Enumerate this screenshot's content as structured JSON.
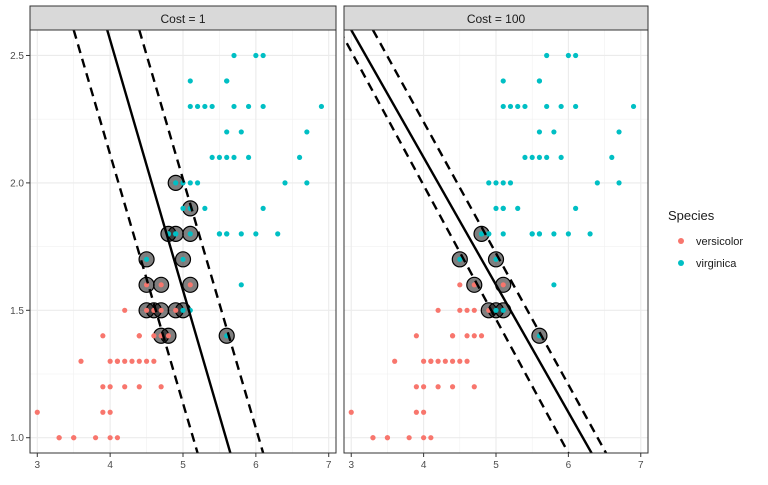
{
  "chart_data": {
    "type": "scatter",
    "colors": {
      "versicolor": "#F8766D",
      "virginica": "#00BFC4",
      "panel_strip": "#D9D9D9",
      "support_vector": "#000000"
    },
    "legend": {
      "title": "Species",
      "placement": "right",
      "entries": [
        "versicolor",
        "virginica"
      ]
    },
    "grid": true,
    "points": {
      "versicolor": [
        [
          3.0,
          1.1
        ],
        [
          3.3,
          1.0
        ],
        [
          3.5,
          1.0
        ],
        [
          3.8,
          1.0
        ],
        [
          4.0,
          1.0
        ],
        [
          4.1,
          1.0
        ],
        [
          3.6,
          1.3
        ],
        [
          3.9,
          1.2
        ],
        [
          3.9,
          1.1
        ],
        [
          4.0,
          1.1
        ],
        [
          4.1,
          1.3
        ],
        [
          4.2,
          1.3
        ],
        [
          4.0,
          1.2
        ],
        [
          4.2,
          1.2
        ],
        [
          4.2,
          1.5
        ],
        [
          4.3,
          1.3
        ],
        [
          4.4,
          1.3
        ],
        [
          4.4,
          1.2
        ],
        [
          4.4,
          1.4
        ],
        [
          4.5,
          1.3
        ],
        [
          4.5,
          1.5
        ],
        [
          4.6,
          1.3
        ],
        [
          4.6,
          1.4
        ],
        [
          4.7,
          1.4
        ],
        [
          4.7,
          1.2
        ],
        [
          4.8,
          1.4
        ],
        [
          4.9,
          1.5
        ],
        [
          5.0,
          1.7
        ],
        [
          5.1,
          1.6
        ],
        [
          4.7,
          1.5
        ],
        [
          4.5,
          1.6
        ],
        [
          4.8,
          1.8
        ],
        [
          3.3,
          1.0
        ],
        [
          3.9,
          1.4
        ],
        [
          3.5,
          1.0
        ],
        [
          4.0,
          1.3
        ],
        [
          4.1,
          1.3
        ],
        [
          4.4,
          1.4
        ],
        [
          4.6,
          1.5
        ],
        [
          4.7,
          1.6
        ]
      ],
      "virginica": [
        [
          6.0,
          2.5
        ],
        [
          5.1,
          1.9
        ],
        [
          5.9,
          2.1
        ],
        [
          5.6,
          1.8
        ],
        [
          5.8,
          2.2
        ],
        [
          6.6,
          2.1
        ],
        [
          4.5,
          1.7
        ],
        [
          6.3,
          1.8
        ],
        [
          5.8,
          1.8
        ],
        [
          6.1,
          2.5
        ],
        [
          5.1,
          2.0
        ],
        [
          5.3,
          1.9
        ],
        [
          5.5,
          2.1
        ],
        [
          5.0,
          2.0
        ],
        [
          5.1,
          2.4
        ],
        [
          5.3,
          2.3
        ],
        [
          5.5,
          1.8
        ],
        [
          6.7,
          2.2
        ],
        [
          6.9,
          2.3
        ],
        [
          5.0,
          1.5
        ],
        [
          5.7,
          2.3
        ],
        [
          4.9,
          2.0
        ],
        [
          6.7,
          2.0
        ],
        [
          4.9,
          1.8
        ],
        [
          5.7,
          2.1
        ],
        [
          6.0,
          1.8
        ],
        [
          4.8,
          1.8
        ],
        [
          4.9,
          1.8
        ],
        [
          5.6,
          2.1
        ],
        [
          5.8,
          1.6
        ],
        [
          6.1,
          1.9
        ],
        [
          6.4,
          2.0
        ],
        [
          5.6,
          2.2
        ],
        [
          5.1,
          1.5
        ],
        [
          5.6,
          1.4
        ],
        [
          6.1,
          2.3
        ],
        [
          5.6,
          2.4
        ],
        [
          5.5,
          1.8
        ],
        [
          4.8,
          1.8
        ],
        [
          5.4,
          2.1
        ],
        [
          5.6,
          2.4
        ],
        [
          5.1,
          2.3
        ],
        [
          5.9,
          2.3
        ],
        [
          5.7,
          2.5
        ],
        [
          5.2,
          2.3
        ],
        [
          5.0,
          1.9
        ],
        [
          5.2,
          2.0
        ],
        [
          5.4,
          2.3
        ],
        [
          5.1,
          1.8
        ],
        [
          5.6,
          1.8
        ],
        [
          5.1,
          1.9
        ],
        [
          5.0,
          1.7
        ]
      ]
    },
    "panels": [
      {
        "strip_label": "Cost = 1",
        "xlim": [
          2.9,
          7.1
        ],
        "ylim": [
          0.94,
          2.6
        ],
        "x_ticks": [
          3,
          4,
          5,
          6,
          7
        ],
        "y_ticks": [
          1.0,
          1.5,
          2.0,
          2.5
        ],
        "y_tick_labels": [
          "1.0",
          "1.5",
          "2.0",
          "2.5"
        ],
        "decision_line": {
          "x_at_y_top": 3.96,
          "x_at_y_bottom": 5.65
        },
        "margin_lower": {
          "x_at_y_top": 3.5,
          "x_at_y_bottom": 5.2
        },
        "margin_upper": {
          "x_at_y_top": 4.4,
          "x_at_y_bottom": 6.1
        },
        "support_vectors": [
          [
            4.9,
            2.0
          ],
          [
            5.1,
            1.9
          ],
          [
            4.8,
            1.8
          ],
          [
            4.9,
            1.8
          ],
          [
            5.1,
            1.8
          ],
          [
            4.5,
            1.7
          ],
          [
            5.0,
            1.7
          ],
          [
            4.5,
            1.6
          ],
          [
            4.7,
            1.6
          ],
          [
            5.1,
            1.6
          ],
          [
            4.5,
            1.5
          ],
          [
            4.6,
            1.5
          ],
          [
            4.7,
            1.5
          ],
          [
            4.9,
            1.5
          ],
          [
            5.0,
            1.5
          ],
          [
            4.7,
            1.4
          ],
          [
            4.8,
            1.4
          ],
          [
            5.6,
            1.4
          ]
        ]
      },
      {
        "strip_label": "Cost = 100",
        "xlim": [
          2.9,
          7.1
        ],
        "ylim": [
          0.94,
          2.6
        ],
        "x_ticks": [
          3,
          4,
          5,
          6,
          7
        ],
        "y_ticks": [
          1.0,
          1.5,
          2.0,
          2.5
        ],
        "y_tick_labels": [
          "1.0",
          "1.5",
          "2.0",
          "2.5"
        ],
        "decision_line": {
          "x_at_y_top": 3.0,
          "x_at_y_bottom": 6.32
        },
        "margin_lower": {
          "x_at_y_top": 2.84,
          "x_at_y_bottom": 6.0
        },
        "margin_upper": {
          "x_at_y_top": 3.3,
          "x_at_y_bottom": 6.52
        },
        "support_vectors": [
          [
            4.8,
            1.8
          ],
          [
            4.5,
            1.7
          ],
          [
            5.0,
            1.7
          ],
          [
            4.7,
            1.6
          ],
          [
            5.1,
            1.6
          ],
          [
            4.9,
            1.5
          ],
          [
            5.0,
            1.5
          ],
          [
            5.1,
            1.5
          ],
          [
            5.6,
            1.4
          ]
        ]
      }
    ]
  }
}
